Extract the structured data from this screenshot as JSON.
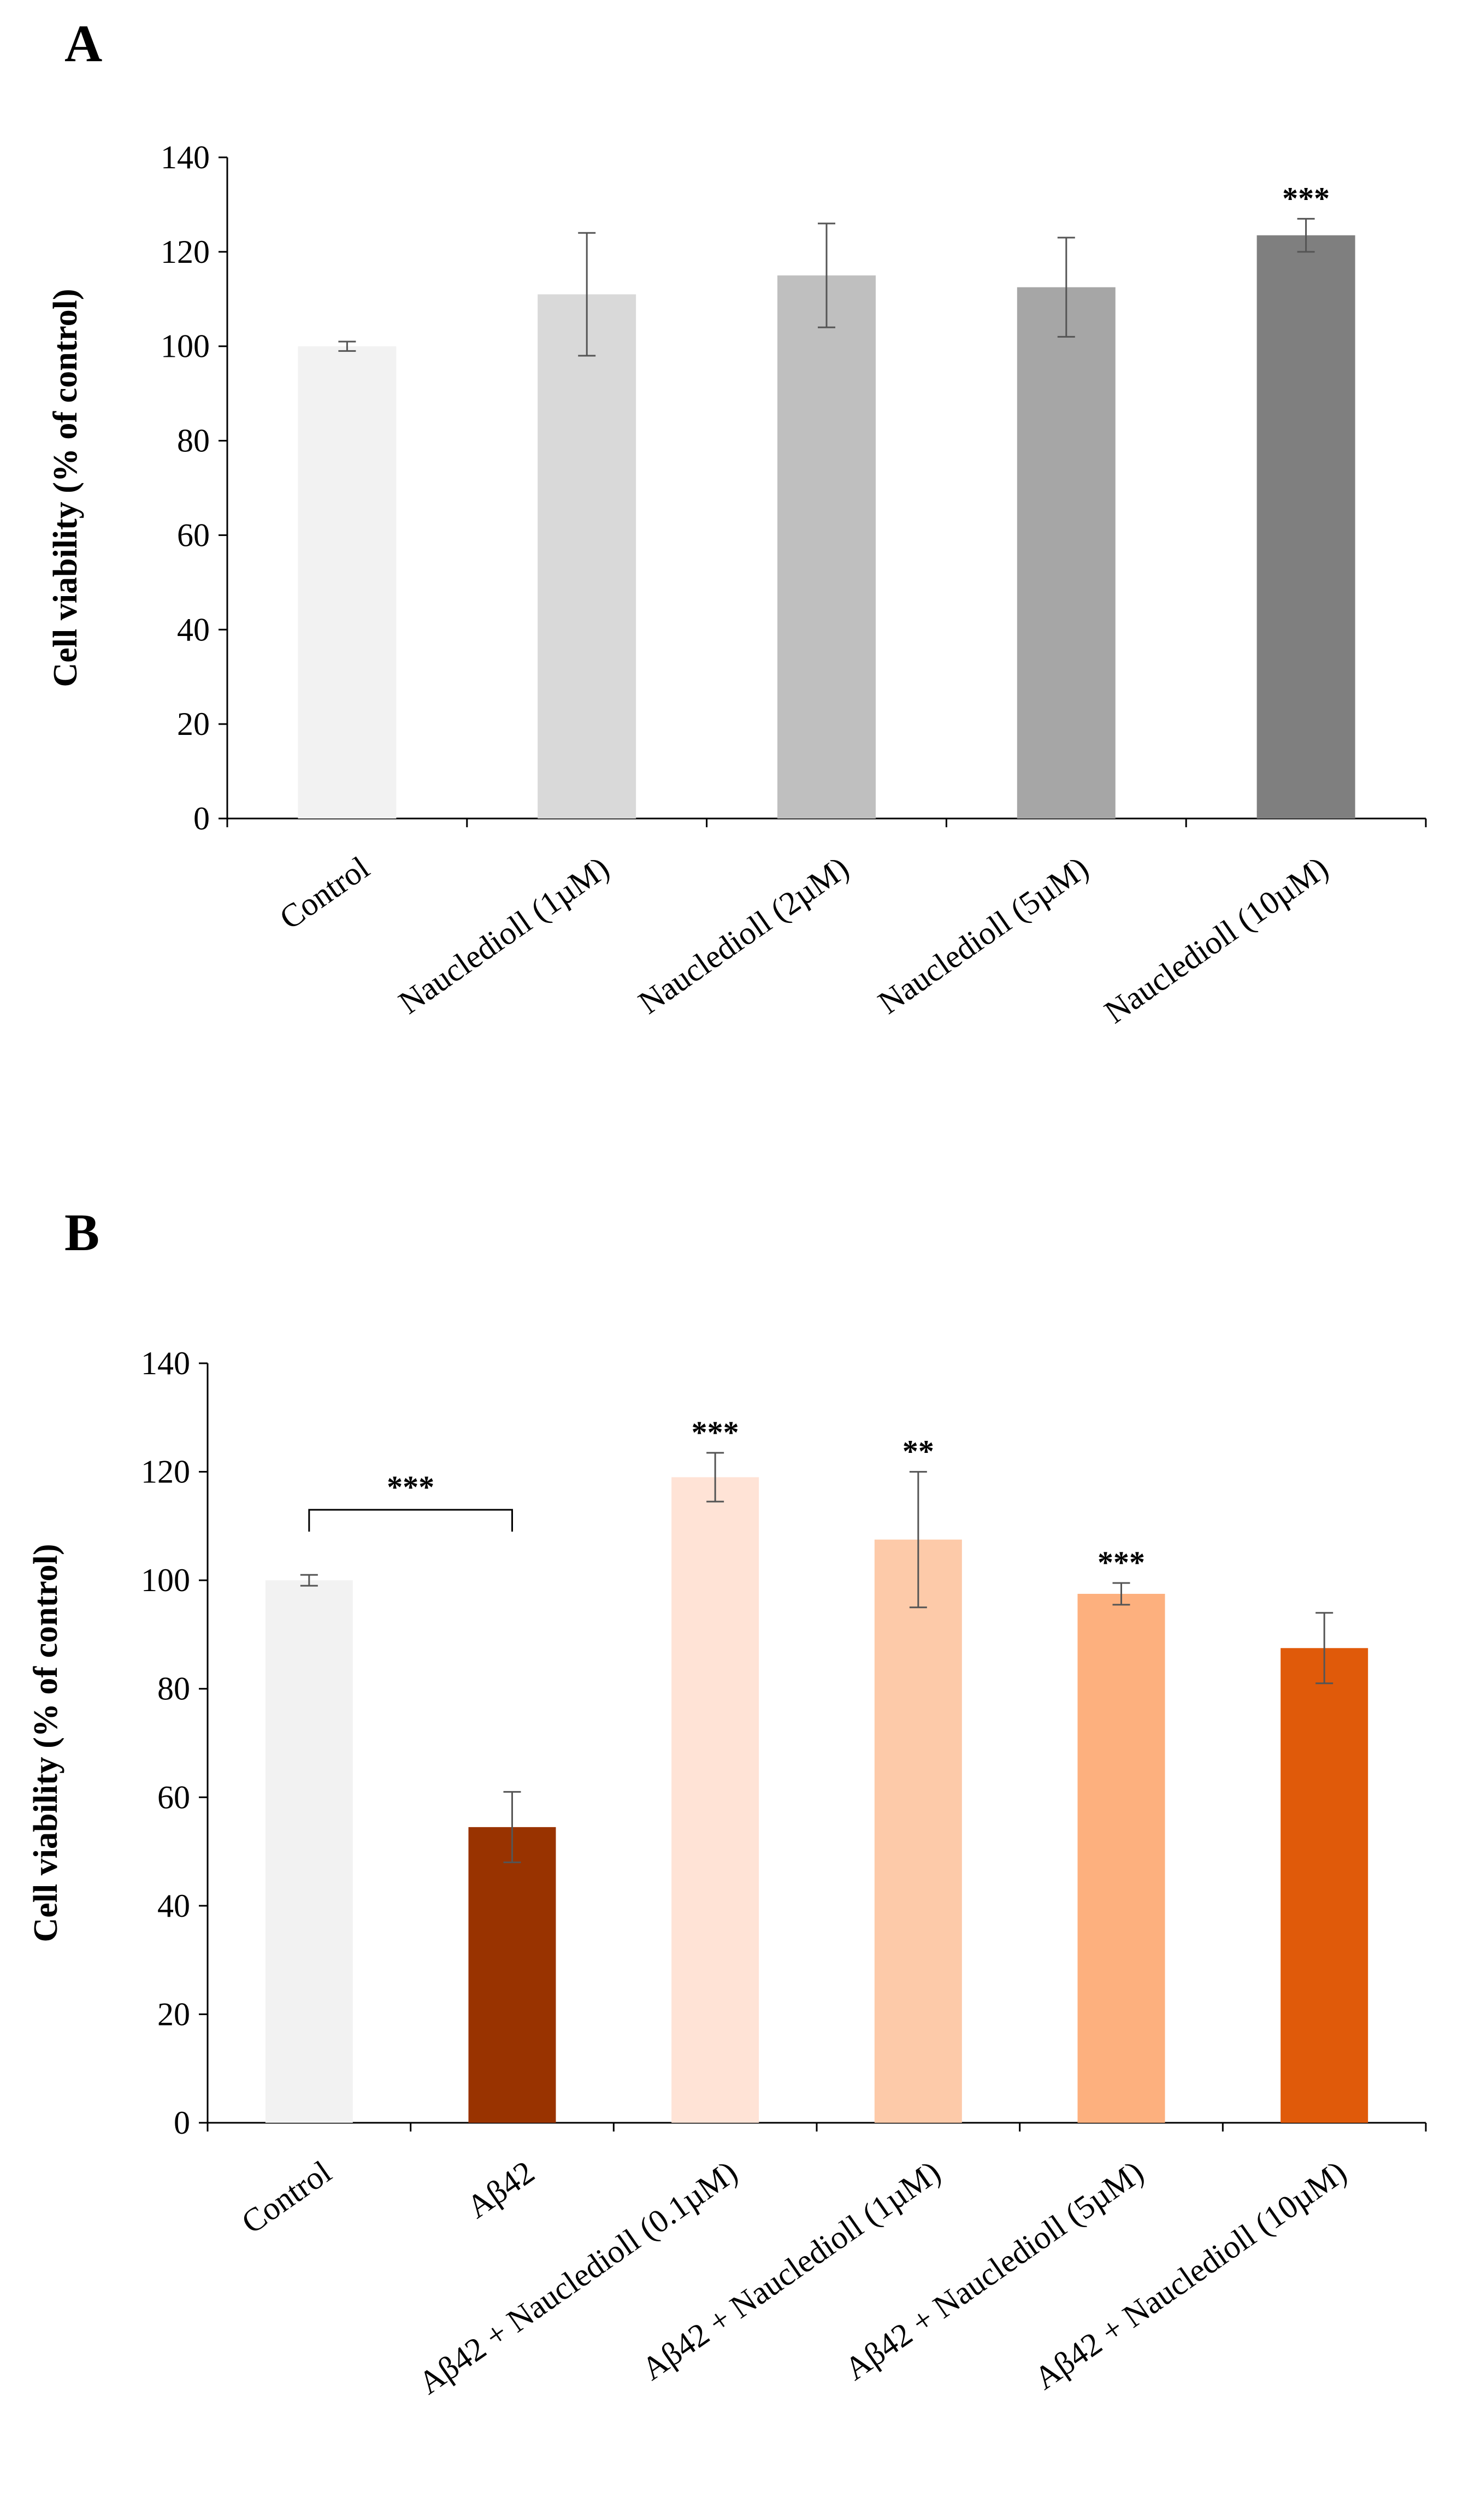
{
  "chart_data": [
    {
      "type": "bar",
      "panel": "A",
      "categories": [
        "Control",
        "Naucledioll (1µM)",
        "Naucledioll (2µM)",
        "Naucledioll (5µM)",
        "Naucledioll (10µM)"
      ],
      "values": [
        100,
        111,
        115,
        112.5,
        123.5
      ],
      "errors": [
        1,
        13,
        11,
        10.5,
        3.5
      ],
      "colors": [
        "#f2f2f2",
        "#d9d9d9",
        "#bfbfbf",
        "#a6a6a6",
        "#7f7f7f"
      ],
      "significance": [
        "",
        "",
        "",
        "",
        "***"
      ],
      "title": "",
      "xlabel": "",
      "ylabel": "Cell viability (% of control)",
      "ylim": [
        0,
        140
      ],
      "yticks": [
        0,
        20,
        40,
        60,
        80,
        100,
        120,
        140
      ]
    },
    {
      "type": "bar",
      "panel": "B",
      "categories": [
        "Control",
        "Aβ42",
        "Aβ42 + Naucledioll (0.1µM)",
        "Aβ42 + Naucledioll (1µM)",
        "Aβ42 + Naucledioll (5µM)",
        "Aβ42 + Naucledioll (10µM)"
      ],
      "values": [
        100,
        54.5,
        119,
        107.5,
        97.5,
        87.5
      ],
      "errors": [
        1,
        6.5,
        4.5,
        12.5,
        2,
        6.5
      ],
      "colors": [
        "#f2f2f2",
        "#993300",
        "#ffe3d6",
        "#fdcaa9",
        "#fdb07e",
        "#e05a0a"
      ],
      "significance": [
        "",
        "",
        "***",
        "**",
        "***",
        ""
      ],
      "bracket": {
        "from": 0,
        "to": 1,
        "label": "***"
      },
      "title": "",
      "xlabel": "",
      "ylabel": "Cell viability (% of control)",
      "ylim": [
        0,
        140
      ],
      "yticks": [
        0,
        20,
        40,
        60,
        80,
        100,
        120,
        140
      ]
    }
  ]
}
